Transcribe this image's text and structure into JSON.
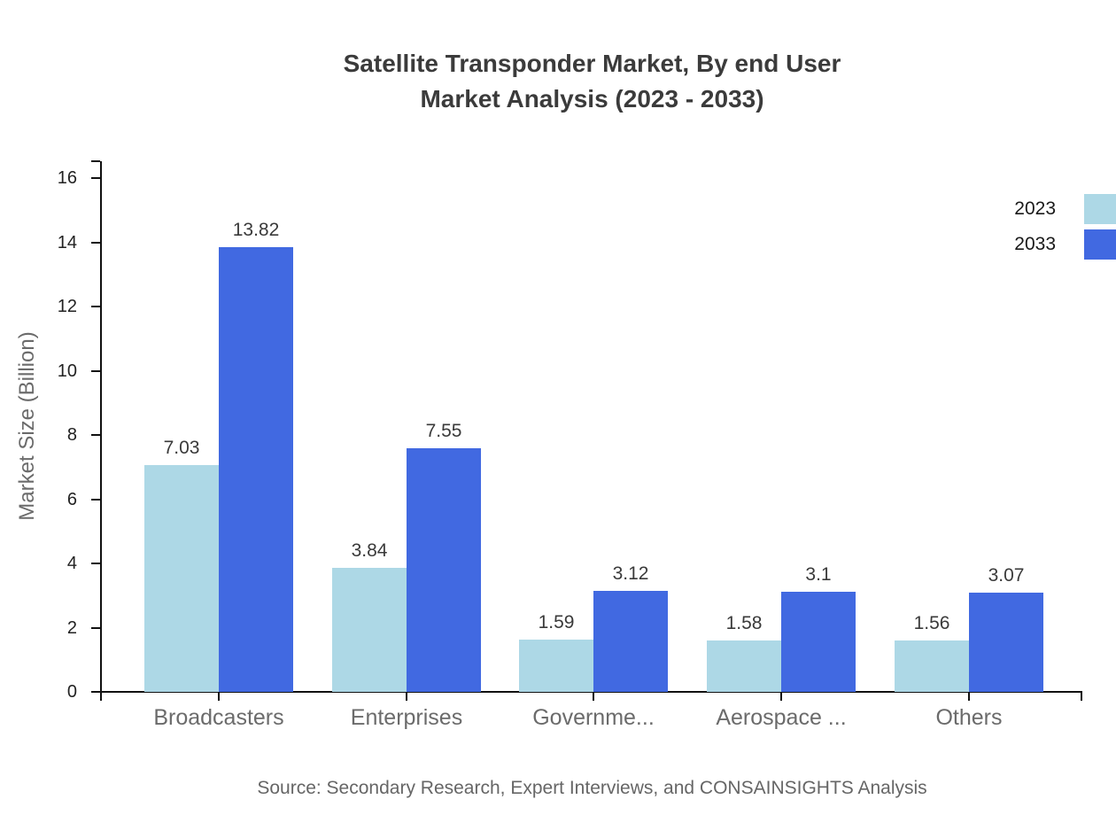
{
  "title": {
    "line1": "Satellite Transponder Market, By end User",
    "line2": "Market Analysis (2023 - 2033)"
  },
  "source": "Source: Secondary Research, Expert Interviews, and CONSAINSIGHTS Analysis",
  "chart_data": {
    "type": "bar",
    "title": "Satellite Transponder Market, By end User Market Analysis (2023 - 2033)",
    "categories": [
      "Broadcasters",
      "Enterprises",
      "Governme...",
      "Aerospace ...",
      "Others"
    ],
    "series": [
      {
        "name": "2023",
        "color": "#ADD8E6",
        "values": [
          7.03,
          3.84,
          1.59,
          1.58,
          1.56
        ]
      },
      {
        "name": "2033",
        "color": "#4169E1",
        "values": [
          13.82,
          7.55,
          3.12,
          3.1,
          3.07
        ]
      }
    ],
    "xlabel": "",
    "ylabel": "Market Size (Billion)",
    "ylim": [
      0,
      16
    ],
    "yticks": [
      0,
      2,
      4,
      6,
      8,
      10,
      12,
      14,
      16
    ],
    "grid": false,
    "legend_position": "top-right",
    "data_labels": true,
    "axis_color": "#111111"
  }
}
